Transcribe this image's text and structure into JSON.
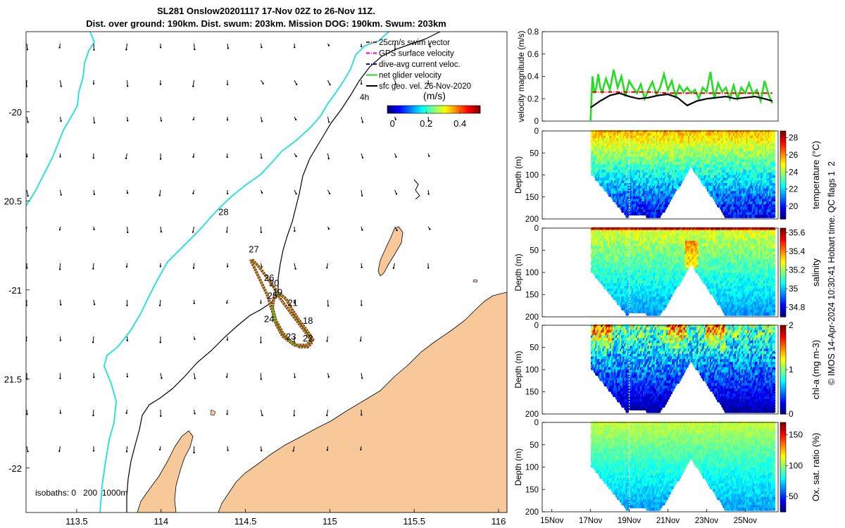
{
  "title_line1": "SL281 Onslow20201117 17-Nov 02Z to 26-Nov 11Z.",
  "title_line2": "Dist. over ground: 190km. Dist. swum: 203km. Mission DOG: 190km. Swum: 203km",
  "colors": {
    "land": "#f7c99a",
    "isobath_200": "#2ee0e0",
    "isobath_1000": "#000000",
    "track": "#dd0000",
    "net_velocity": "#22dd22",
    "swim_vector": "#dd0000"
  },
  "map": {
    "xlim": [
      113.2,
      116.05
    ],
    "ylim": [
      -22.25,
      -19.55
    ],
    "x_ticks": [
      113.5,
      114,
      114.5,
      115,
      115.5,
      116
    ],
    "x_tick_labels": [
      "113.5",
      "114",
      "114.5",
      "115",
      "115.5",
      "116"
    ],
    "y_ticks": [
      -20,
      -20.5,
      -21,
      -21.5,
      -22
    ],
    "y_tick_labels": [
      "-20",
      "20.5",
      "-21",
      "21.5",
      "-22"
    ],
    "legend": [
      {
        "label": "25cm/s swim vector",
        "color": "#dd0000",
        "style": "dashdot"
      },
      {
        "label": "GPS surface velocity",
        "color": "#dd00dd",
        "style": "dashdot"
      },
      {
        "label": "dive-avg current veloc.",
        "color": "#0000dd",
        "style": "dashdot"
      },
      {
        "label": "net glider velocity",
        "color": "#22dd22",
        "style": "solid"
      },
      {
        "label": "sfc geo. vel. 26-Nov-2020",
        "color": "#000000",
        "style": "solid"
      }
    ],
    "colorbar_unit": "(m/s)",
    "colorbar_ticks": [
      "0",
      "0.2",
      "0.4"
    ],
    "colorbar_range": [
      -0.03,
      0.52
    ],
    "isobath_note": "isobaths: 0   200  1000m",
    "timer_label": "4h",
    "day_labels": [
      {
        "text": "28",
        "lon": 114.37,
        "lat": -20.58
      },
      {
        "text": "27",
        "lon": 114.55,
        "lat": -20.79
      },
      {
        "text": "26",
        "lon": 114.64,
        "lat": -20.95
      },
      {
        "text": "20",
        "lon": 114.67,
        "lat": -20.98
      },
      {
        "text": "19",
        "lon": 114.69,
        "lat": -21.03
      },
      {
        "text": "25",
        "lon": 114.66,
        "lat": -21.05
      },
      {
        "text": "21",
        "lon": 114.78,
        "lat": -21.09
      },
      {
        "text": "24",
        "lon": 114.64,
        "lat": -21.18
      },
      {
        "text": "18",
        "lon": 114.87,
        "lat": -21.19
      },
      {
        "text": "23",
        "lon": 114.77,
        "lat": -21.28
      },
      {
        "text": "22",
        "lon": 114.87,
        "lat": -21.29
      }
    ],
    "track": [
      [
        114.54,
        -20.83
      ],
      [
        114.58,
        -20.87
      ],
      [
        114.62,
        -20.92
      ],
      [
        114.65,
        -20.96
      ],
      [
        114.68,
        -21.0
      ],
      [
        114.7,
        -21.04
      ],
      [
        114.73,
        -21.08
      ],
      [
        114.77,
        -21.13
      ],
      [
        114.81,
        -21.18
      ],
      [
        114.85,
        -21.23
      ],
      [
        114.88,
        -21.27
      ],
      [
        114.89,
        -21.3
      ],
      [
        114.87,
        -21.32
      ],
      [
        114.82,
        -21.32
      ],
      [
        114.77,
        -21.29
      ],
      [
        114.72,
        -21.24
      ],
      [
        114.68,
        -21.17
      ],
      [
        114.66,
        -21.1
      ],
      [
        114.67,
        -21.04
      ],
      [
        114.7,
        -21.02
      ],
      [
        114.74,
        -21.05
      ],
      [
        114.77,
        -21.1
      ],
      [
        114.81,
        -21.16
      ],
      [
        114.85,
        -21.21
      ],
      [
        114.88,
        -21.25
      ],
      [
        114.9,
        -21.28
      ],
      [
        114.86,
        -21.31
      ],
      [
        114.79,
        -21.31
      ],
      [
        114.72,
        -21.26
      ],
      [
        114.68,
        -21.19
      ],
      [
        114.66,
        -21.12
      ],
      [
        114.63,
        -21.03
      ],
      [
        114.59,
        -20.95
      ],
      [
        114.55,
        -20.87
      ],
      [
        114.53,
        -20.83
      ]
    ]
  },
  "chart_data": [
    {
      "type": "line",
      "title": "",
      "xlabel": "",
      "ylabel": "velocity magnitude (m/s)",
      "xlim": [
        14.5,
        26.7
      ],
      "ylim": [
        0,
        0.8
      ],
      "y_ticks": [
        "0",
        "0.2",
        "0.4",
        "0.6",
        "0.8"
      ],
      "series": [
        {
          "color": "#22dd22",
          "x": [
            17.0,
            17.1,
            17.2,
            17.3,
            17.4,
            17.5,
            17.6,
            17.8,
            18.0,
            18.2,
            18.4,
            18.6,
            18.8,
            19.0,
            19.2,
            19.4,
            19.6,
            19.8,
            20.0,
            20.2,
            20.4,
            20.6,
            20.8,
            21.0,
            21.2,
            21.4,
            21.6,
            21.8,
            22.0,
            22.2,
            22.4,
            22.6,
            22.8,
            23.0,
            23.2,
            23.4,
            23.6,
            23.8,
            24.0,
            24.2,
            24.4,
            24.6,
            24.8,
            25.0,
            25.2,
            25.4,
            25.6,
            25.8,
            26.0,
            26.2,
            26.4
          ],
          "y": [
            0.0,
            0.4,
            0.25,
            0.3,
            0.42,
            0.3,
            0.26,
            0.38,
            0.28,
            0.46,
            0.3,
            0.4,
            0.22,
            0.36,
            0.3,
            0.25,
            0.33,
            0.2,
            0.28,
            0.35,
            0.24,
            0.3,
            0.42,
            0.28,
            0.36,
            0.22,
            0.32,
            0.26,
            0.3,
            0.25,
            0.28,
            0.2,
            0.3,
            0.26,
            0.44,
            0.2,
            0.34,
            0.26,
            0.3,
            0.2,
            0.32,
            0.2,
            0.3,
            0.25,
            0.34,
            0.24,
            0.28,
            0.18,
            0.36,
            0.24,
            0.16
          ]
        },
        {
          "color": "#dd0000",
          "style": "dashdot",
          "x": [
            17.1,
            18.0,
            19.0,
            20.0,
            21.0,
            22.0,
            23.0,
            24.0,
            25.0,
            26.4
          ],
          "y": [
            0.26,
            0.26,
            0.26,
            0.26,
            0.25,
            0.25,
            0.25,
            0.25,
            0.25,
            0.25
          ]
        },
        {
          "color": "#000000",
          "x": [
            17.0,
            17.5,
            18.0,
            18.5,
            19.0,
            19.5,
            20.0,
            20.5,
            21.0,
            21.5,
            22.0,
            22.5,
            23.0,
            23.5,
            24.0,
            24.5,
            25.0,
            25.5,
            26.0,
            26.4
          ],
          "y": [
            0.12,
            0.18,
            0.23,
            0.25,
            0.22,
            0.2,
            0.21,
            0.23,
            0.24,
            0.21,
            0.14,
            0.18,
            0.2,
            0.21,
            0.22,
            0.2,
            0.21,
            0.22,
            0.2,
            0.18
          ]
        }
      ]
    },
    {
      "type": "heatmap",
      "ylabel": "Depth (m)",
      "cbar_label": "temperature (°C)",
      "clim": [
        18.5,
        28.8
      ],
      "cbar_ticks": [
        20,
        22,
        24,
        26,
        28
      ],
      "ylim": [
        200,
        0
      ],
      "y_ticks": [
        "0",
        "50",
        "100",
        "150",
        "200"
      ],
      "surface_value": 25.8,
      "bottom_value": 19.5,
      "surface_noise": 0.8,
      "bottom_noise": 1.2
    },
    {
      "type": "heatmap",
      "ylabel": "Depth (m)",
      "cbar_label": "salinity",
      "clim": [
        34.7,
        35.65
      ],
      "cbar_ticks": [
        34.8,
        35,
        35.2,
        35.4,
        35.6
      ],
      "ylim": [
        200,
        0
      ],
      "y_ticks": [
        "0",
        "50",
        "100",
        "150",
        "200"
      ],
      "surface_value": 35.28,
      "bottom_value": 34.95,
      "surface_noise": 0.08,
      "bottom_noise": 0.05
    },
    {
      "type": "heatmap",
      "ylabel": "Depth (m)",
      "cbar_label": "chl-a (mg m-3)",
      "clim": [
        0,
        2
      ],
      "cbar_ticks": [
        0,
        1,
        2
      ],
      "ylim": [
        200,
        0
      ],
      "y_ticks": [
        "0",
        "50",
        "100",
        "150",
        "200"
      ],
      "surface_value": 1.0,
      "bottom_value": 0.05,
      "surface_noise": 0.45,
      "bottom_noise": 0.08
    },
    {
      "type": "heatmap",
      "ylabel": "Depth (m)",
      "cbar_label": "Ox. sat. ratio (%)",
      "clim": [
        25,
        170
      ],
      "cbar_ticks": [
        50,
        100,
        150
      ],
      "ylim": [
        200,
        0
      ],
      "y_ticks": [
        "0",
        "50",
        "100",
        "150",
        "200"
      ],
      "surface_value": 108,
      "bottom_value": 65,
      "surface_noise": 6,
      "bottom_noise": 8
    }
  ],
  "time_axis": {
    "ticks": [
      15,
      17,
      19,
      21,
      23,
      25
    ],
    "labels": [
      "15Nov",
      "17Nov",
      "19Nov",
      "21Nov",
      "23Nov",
      "25Nov"
    ]
  },
  "side_note": "© IMOS 14-Apr-2024 10:30:41 Hobart time. QC flags 1  2"
}
